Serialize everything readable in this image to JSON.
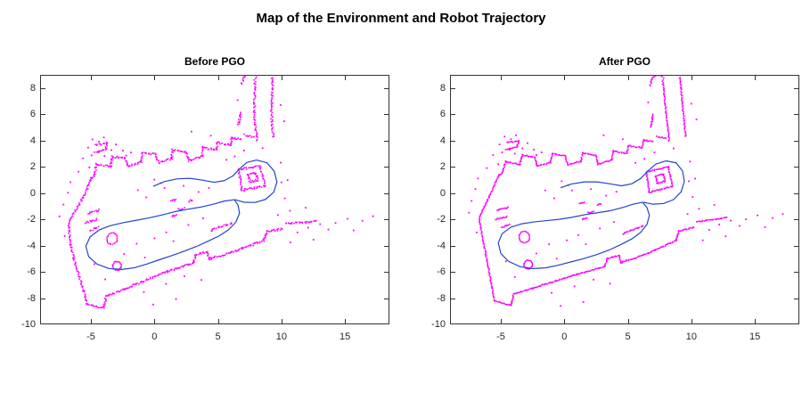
{
  "figure": {
    "title": "Map of the Environment and Robot Trajectory",
    "background": "#ffffff",
    "axes_color": "#333333",
    "tick_label_color": "#262626"
  },
  "chart_data": [
    {
      "type": "scatter",
      "title": "Before PGO",
      "xlim": [
        -9,
        18.5
      ],
      "ylim": [
        -10,
        9
      ],
      "xticks": [
        -5,
        0,
        5,
        10,
        15
      ],
      "yticks": [
        8,
        6,
        4,
        2,
        0,
        -2,
        -4,
        -6,
        -8,
        -10
      ],
      "grid": false,
      "legend": "none",
      "series": [
        {
          "name": "occupancy-map-points",
          "color": "#ff00ff",
          "marker": "dot"
        },
        {
          "name": "robot-trajectory",
          "color": "#2244cc",
          "style": "line"
        }
      ],
      "distortion": 1
    },
    {
      "type": "scatter",
      "title": "After PGO",
      "xlim": [
        -9,
        18.5
      ],
      "ylim": [
        -10,
        9
      ],
      "xticks": [
        -5,
        0,
        5,
        10,
        15
      ],
      "yticks": [
        8,
        6,
        4,
        2,
        0,
        -2,
        -4,
        -6,
        -8,
        -10
      ],
      "grid": false,
      "legend": "none",
      "series": [
        {
          "name": "occupancy-map-points",
          "color": "#ff00ff",
          "marker": "dot"
        },
        {
          "name": "robot-trajectory",
          "color": "#2244cc",
          "style": "line"
        }
      ],
      "distortion": 0
    }
  ],
  "geometry": {
    "walls": [
      [
        -6.7,
        -2.0,
        -5.5,
        -8.2
      ],
      [
        -5.5,
        -8.2,
        -4.2,
        -8.55
      ],
      [
        -4.2,
        -8.55,
        -4.0,
        -7.7
      ],
      [
        -4.0,
        -7.7,
        -1.5,
        -6.95
      ],
      [
        -1.5,
        -6.95,
        1.0,
        -6.2
      ],
      [
        1.0,
        -6.2,
        3.2,
        -5.6
      ],
      [
        3.2,
        -5.6,
        3.35,
        -5.0
      ],
      [
        3.35,
        -5.0,
        4.3,
        -4.75
      ],
      [
        4.3,
        -4.75,
        4.45,
        -5.3
      ],
      [
        4.45,
        -5.3,
        6.6,
        -4.6
      ],
      [
        6.6,
        -4.6,
        8.8,
        -3.6
      ],
      [
        8.8,
        -3.6,
        9.0,
        -2.9
      ],
      [
        9.0,
        -2.9,
        10.2,
        -2.6
      ],
      [
        10.4,
        -2.2,
        12.8,
        -1.85
      ],
      [
        -6.7,
        -1.9,
        -5.15,
        1.35
      ],
      [
        -5.15,
        1.35,
        -4.9,
        1.5
      ],
      [
        -4.9,
        1.5,
        -4.6,
        2.4
      ],
      [
        -4.6,
        2.4,
        -3.5,
        2.15
      ],
      [
        -3.5,
        2.15,
        -3.3,
        2.9
      ],
      [
        -3.3,
        2.9,
        -2.3,
        2.7
      ],
      [
        -2.3,
        2.7,
        -2.15,
        2.05
      ],
      [
        -2.15,
        2.05,
        -1.1,
        2.3
      ],
      [
        -1.1,
        2.3,
        -0.95,
        3.0
      ],
      [
        -0.95,
        3.0,
        0.1,
        2.8
      ],
      [
        0.1,
        2.8,
        0.25,
        2.15
      ],
      [
        0.25,
        2.15,
        1.3,
        2.4
      ],
      [
        1.3,
        2.4,
        1.45,
        3.05
      ],
      [
        1.45,
        3.05,
        2.5,
        2.85
      ],
      [
        2.5,
        2.85,
        2.65,
        2.2
      ],
      [
        2.65,
        2.2,
        3.7,
        2.5
      ],
      [
        3.7,
        2.5,
        3.85,
        3.2
      ],
      [
        3.85,
        3.2,
        4.9,
        3.0
      ],
      [
        4.9,
        3.0,
        5.05,
        3.6
      ],
      [
        5.05,
        3.6,
        6.1,
        3.45
      ],
      [
        6.1,
        3.45,
        6.25,
        4.05
      ],
      [
        6.25,
        4.05,
        7.0,
        3.9
      ],
      [
        -4.6,
        3.3,
        -3.7,
        3.55
      ],
      [
        -3.7,
        3.55,
        -3.6,
        3.95
      ],
      [
        -4.5,
        3.85,
        -3.6,
        3.95
      ],
      [
        7.75,
        8.6,
        8.25,
        4.0
      ],
      [
        9.1,
        8.8,
        9.55,
        4.3
      ],
      [
        6.75,
        8.2,
        6.95,
        8.8
      ],
      [
        6.95,
        8.8,
        7.4,
        9.0
      ],
      [
        7.4,
        9.0,
        7.8,
        8.8
      ],
      [
        7.3,
        4.3,
        8.0,
        4.15
      ],
      [
        6.8,
        5.0,
        7.0,
        6.0
      ],
      [
        6.7,
        0.05,
        8.5,
        0.5
      ],
      [
        8.5,
        0.5,
        8.2,
        2.0
      ],
      [
        8.2,
        2.0,
        6.45,
        1.6
      ],
      [
        6.45,
        1.6,
        6.7,
        0.05
      ],
      [
        7.3,
        0.75,
        7.9,
        0.9
      ],
      [
        7.9,
        0.9,
        7.8,
        1.45
      ],
      [
        7.8,
        1.45,
        7.2,
        1.3
      ],
      [
        7.2,
        1.3,
        7.3,
        0.75
      ],
      [
        1.2,
        -0.8,
        1.6,
        -0.7
      ],
      [
        1.9,
        -1.5,
        2.3,
        -1.4
      ],
      [
        1.4,
        -2.0,
        1.8,
        -1.9
      ],
      [
        2.6,
        -0.9,
        2.9,
        -0.8
      ],
      [
        -5.3,
        -1.3,
        -4.4,
        -1.1
      ],
      [
        -5.4,
        -2.0,
        -4.5,
        -1.8
      ],
      [
        -4.9,
        -2.6,
        -4.3,
        -2.4
      ],
      [
        4.6,
        -3.1,
        6.2,
        -2.5
      ]
    ],
    "circles": [
      [
        -3.15,
        -3.35,
        0.42
      ],
      [
        -2.85,
        -5.45,
        0.33
      ]
    ],
    "noise": [
      [
        -4.7,
        4.3
      ],
      [
        -4.2,
        4.1
      ],
      [
        -3.8,
        4.4
      ],
      [
        -5.1,
        3.7
      ],
      [
        -4.9,
        3.1
      ],
      [
        -4.3,
        3.3
      ],
      [
        -3.9,
        3.0
      ],
      [
        -3.3,
        3.4
      ],
      [
        -5.6,
        2.9
      ],
      [
        -5.2,
        2.2
      ],
      [
        -6.1,
        1.9
      ],
      [
        -2.9,
        3.8
      ],
      [
        -2.4,
        3.3
      ],
      [
        -1.8,
        3.1
      ],
      [
        -2.2,
        2.9
      ],
      [
        -7.3,
        -0.6
      ],
      [
        -7.0,
        0.3
      ],
      [
        -6.8,
        1.1
      ],
      [
        -7.5,
        -1.5
      ],
      [
        -6.9,
        -3.0
      ],
      [
        -1.5,
        0.2
      ],
      [
        -0.8,
        -0.4
      ],
      [
        0.3,
        0.6
      ],
      [
        0.6,
        0.2
      ],
      [
        -0.2,
        0.9
      ],
      [
        2.1,
        0.3
      ],
      [
        3.3,
        -0.2
      ],
      [
        4.1,
        0.1
      ],
      [
        1.1,
        -3.2
      ],
      [
        0.2,
        -3.6
      ],
      [
        -1.2,
        -3.9
      ],
      [
        2.8,
        -2.7
      ],
      [
        3.9,
        -2.2
      ],
      [
        -2.2,
        -4.6
      ],
      [
        -0.6,
        -5.0
      ],
      [
        1.7,
        -3.9
      ],
      [
        -2.5,
        -7.3
      ],
      [
        -1.0,
        -7.6
      ],
      [
        0.8,
        -7.1
      ],
      [
        2.3,
        -6.6
      ],
      [
        -3.9,
        -6.4
      ],
      [
        -4.6,
        -5.2
      ],
      [
        3.6,
        -6.9
      ],
      [
        1.5,
        -8.3
      ],
      [
        -0.3,
        -8.6
      ],
      [
        9.7,
        -1.6
      ],
      [
        10.6,
        -1.2
      ],
      [
        11.4,
        -2.8
      ],
      [
        12.2,
        -2.4
      ],
      [
        13.1,
        -2.1
      ],
      [
        13.8,
        -2.5
      ],
      [
        12.7,
        -3.3
      ],
      [
        11.8,
        -0.9
      ],
      [
        14.3,
        -2.0
      ],
      [
        10.9,
        -3.6
      ],
      [
        5.6,
        2.3
      ],
      [
        6.3,
        2.6
      ],
      [
        7.1,
        3.1
      ],
      [
        9.9,
        2.4
      ],
      [
        10.3,
        1.1
      ],
      [
        10.1,
        -0.3
      ],
      [
        9.8,
        0.9
      ],
      [
        10.4,
        5.6
      ],
      [
        10.0,
        6.8
      ],
      [
        8.6,
        3.4
      ],
      [
        6.6,
        6.9
      ],
      [
        6.9,
        5.7
      ],
      [
        4.6,
        4.1
      ],
      [
        3.1,
        4.4
      ],
      [
        15.2,
        -1.7
      ],
      [
        16.4,
        -1.9
      ],
      [
        17.2,
        -1.6
      ],
      [
        15.8,
        -2.6
      ]
    ],
    "trajectory": [
      [
        -0.3,
        0.4
      ],
      [
        0.6,
        0.7
      ],
      [
        1.6,
        0.85
      ],
      [
        2.6,
        0.85
      ],
      [
        3.6,
        0.7
      ],
      [
        4.5,
        0.55
      ],
      [
        5.3,
        0.7
      ],
      [
        6.0,
        1.1
      ],
      [
        6.6,
        1.7
      ],
      [
        7.2,
        2.2
      ],
      [
        8.0,
        2.45
      ],
      [
        8.8,
        2.3
      ],
      [
        9.3,
        1.7
      ],
      [
        9.45,
        0.9
      ],
      [
        9.2,
        0.1
      ],
      [
        8.6,
        -0.5
      ],
      [
        7.8,
        -0.8
      ],
      [
        7.0,
        -0.85
      ],
      [
        6.2,
        -0.7
      ],
      [
        5.4,
        -0.85
      ],
      [
        4.6,
        -1.1
      ],
      [
        3.6,
        -1.35
      ],
      [
        2.6,
        -1.5
      ],
      [
        1.6,
        -1.65
      ],
      [
        0.6,
        -1.85
      ],
      [
        -0.4,
        -2.0
      ],
      [
        -1.4,
        -2.1
      ],
      [
        -2.4,
        -2.2
      ],
      [
        -3.4,
        -2.35
      ],
      [
        -4.2,
        -2.6
      ],
      [
        -4.9,
        -3.1
      ],
      [
        -5.2,
        -3.8
      ],
      [
        -5.0,
        -4.6
      ],
      [
        -4.4,
        -5.2
      ],
      [
        -3.5,
        -5.6
      ],
      [
        -2.5,
        -5.75
      ],
      [
        -1.5,
        -5.7
      ],
      [
        -0.5,
        -5.5
      ],
      [
        0.5,
        -5.25
      ],
      [
        1.5,
        -5.0
      ],
      [
        2.5,
        -4.7
      ],
      [
        3.5,
        -4.35
      ],
      [
        4.4,
        -3.95
      ],
      [
        5.3,
        -3.5
      ],
      [
        6.0,
        -3.0
      ],
      [
        6.5,
        -2.4
      ],
      [
        6.7,
        -1.7
      ],
      [
        6.5,
        -1.1
      ],
      [
        6.2,
        -0.75
      ]
    ]
  }
}
